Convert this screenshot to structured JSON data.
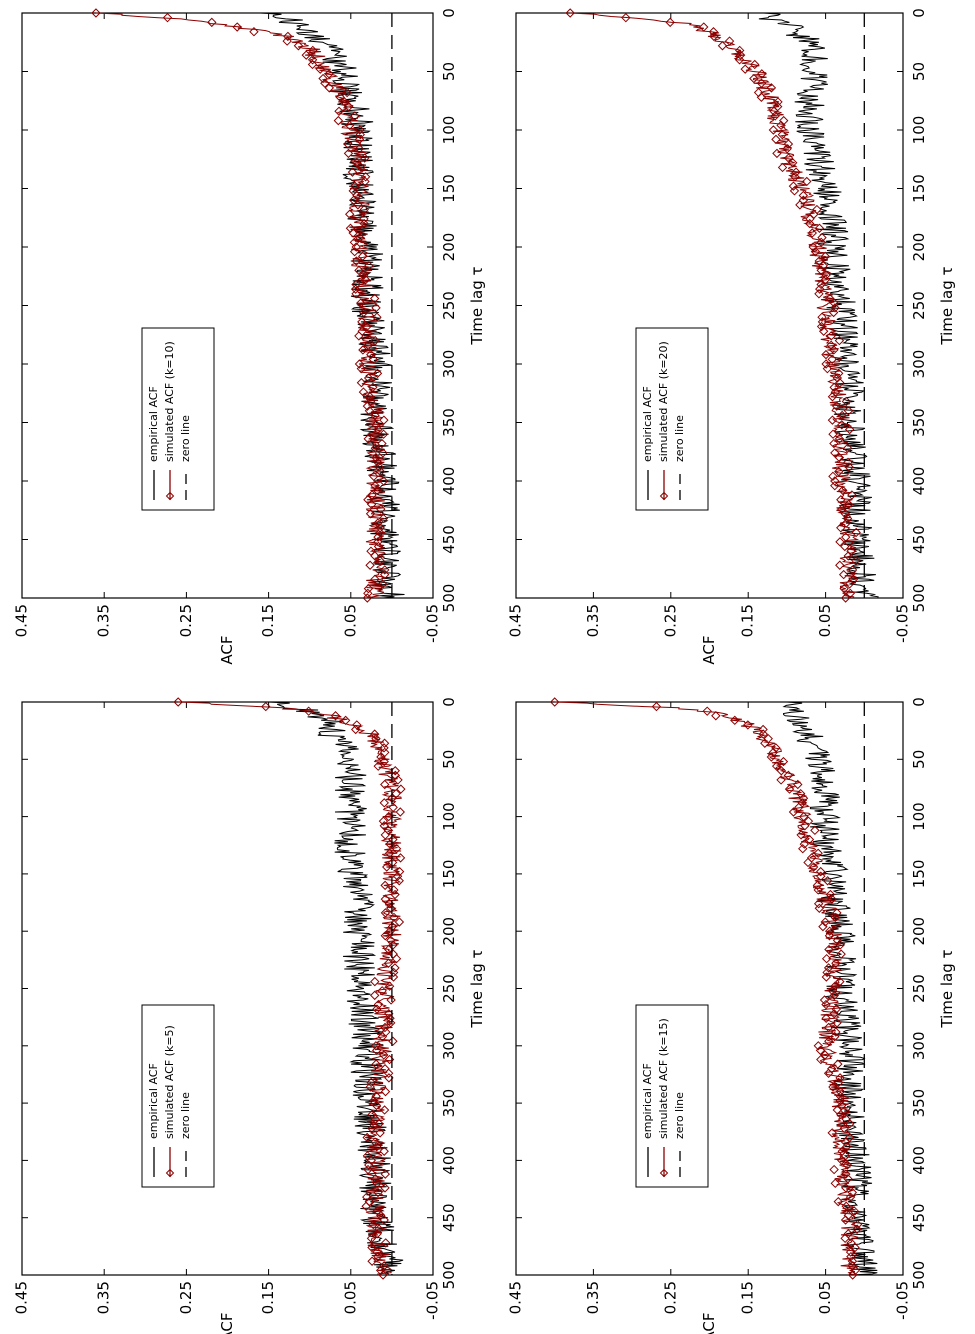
{
  "figure": {
    "orientation": "rotated 90 degrees clockwise (landscape page shown in portrait)"
  },
  "chart_data": [
    {
      "type": "line",
      "id": "k5",
      "xlabel": "Time lag τ",
      "ylabel": "ACF",
      "xlim": [
        0,
        500
      ],
      "ylim": [
        -0.05,
        0.45
      ],
      "x_ticks": [
        "0",
        "50",
        "100",
        "150",
        "200",
        "250",
        "300",
        "350",
        "400",
        "450",
        "500"
      ],
      "y_ticks": [
        "-0.05",
        "0.05",
        "0.15",
        "0.25",
        "0.35",
        "0.45"
      ],
      "legend": {
        "placement": "top-right",
        "entries": [
          "empirical ACF",
          "simulated ACF (k=5)",
          "zero line"
        ]
      },
      "series": [
        {
          "name": "empirical ACF",
          "color": "#000000",
          "x": [
            0,
            5,
            10,
            20,
            30,
            50,
            75,
            100,
            125,
            150,
            175,
            200,
            250,
            300,
            350,
            400,
            450,
            500
          ],
          "y": [
            0.15,
            0.12,
            0.09,
            0.07,
            0.07,
            0.05,
            0.05,
            0.05,
            0.05,
            0.05,
            0.04,
            0.04,
            0.04,
            0.03,
            0.03,
            0.02,
            0.02,
            0.0
          ]
        },
        {
          "name": "simulated ACF (k=5)",
          "color": "#8b0000",
          "marker": "diamond",
          "x": [
            0,
            5,
            10,
            20,
            30,
            50,
            75,
            100,
            125,
            150,
            175,
            200,
            250,
            300,
            350,
            400,
            450,
            500
          ],
          "y": [
            0.26,
            0.13,
            0.08,
            0.05,
            0.02,
            0.01,
            0.0,
            0.0,
            0.0,
            0.0,
            0.0,
            0.0,
            0.01,
            0.01,
            0.02,
            0.02,
            0.02,
            0.01
          ]
        },
        {
          "name": "zero line",
          "color": "#000000",
          "dash": true,
          "x": [
            0,
            500
          ],
          "y": [
            0,
            0
          ]
        }
      ]
    },
    {
      "type": "line",
      "id": "k10",
      "xlabel": "Time lag τ",
      "ylabel": "ACF",
      "xlim": [
        0,
        500
      ],
      "ylim": [
        -0.05,
        0.45
      ],
      "x_ticks": [
        "0",
        "50",
        "100",
        "150",
        "200",
        "250",
        "300",
        "350",
        "400",
        "450",
        "500"
      ],
      "y_ticks": [
        "-0.05",
        "0.05",
        "0.15",
        "0.25",
        "0.35",
        "0.45"
      ],
      "legend": {
        "placement": "top-right",
        "entries": [
          "empirical ACF",
          "simulated ACF (k=10)",
          "zero line"
        ]
      },
      "series": [
        {
          "name": "empirical ACF",
          "color": "#000000",
          "x": [
            0,
            5,
            10,
            20,
            30,
            50,
            75,
            100,
            125,
            150,
            175,
            200,
            250,
            300,
            350,
            400,
            450,
            500
          ],
          "y": [
            0.16,
            0.13,
            0.11,
            0.09,
            0.08,
            0.06,
            0.05,
            0.04,
            0.04,
            0.04,
            0.04,
            0.03,
            0.03,
            0.02,
            0.02,
            0.01,
            0.01,
            0.0
          ]
        },
        {
          "name": "simulated ACF (k=10)",
          "color": "#8b0000",
          "marker": "diamond",
          "x": [
            0,
            5,
            10,
            20,
            30,
            50,
            75,
            100,
            125,
            150,
            175,
            200,
            250,
            300,
            350,
            400,
            450,
            500
          ],
          "y": [
            0.36,
            0.26,
            0.2,
            0.13,
            0.1,
            0.08,
            0.06,
            0.05,
            0.04,
            0.04,
            0.04,
            0.04,
            0.03,
            0.03,
            0.02,
            0.02,
            0.02,
            0.02
          ]
        },
        {
          "name": "zero line",
          "color": "#000000",
          "dash": true,
          "x": [
            0,
            500
          ],
          "y": [
            0,
            0
          ]
        }
      ]
    },
    {
      "type": "line",
      "id": "k15",
      "xlabel": "Time lag τ",
      "ylabel": "ACF",
      "xlim": [
        0,
        500
      ],
      "ylim": [
        -0.05,
        0.45
      ],
      "x_ticks": [
        "0",
        "50",
        "100",
        "150",
        "200",
        "250",
        "300",
        "350",
        "400",
        "450",
        "500"
      ],
      "y_ticks": [
        "-0.05",
        "0.05",
        "0.15",
        "0.25",
        "0.35",
        "0.45"
      ],
      "legend": {
        "placement": "top-right",
        "entries": [
          "empirical ACF",
          "simulated ACF (k=15)",
          "zero line"
        ]
      },
      "series": [
        {
          "name": "empirical ACF",
          "color": "#000000",
          "x": [
            0,
            5,
            10,
            20,
            30,
            50,
            75,
            100,
            125,
            150,
            175,
            200,
            250,
            300,
            350,
            400,
            450,
            500
          ],
          "y": [
            0.1,
            0.1,
            0.09,
            0.08,
            0.07,
            0.06,
            0.05,
            0.05,
            0.05,
            0.04,
            0.04,
            0.03,
            0.03,
            0.02,
            0.02,
            0.01,
            0.01,
            0.0
          ]
        },
        {
          "name": "simulated ACF (k=15)",
          "color": "#8b0000",
          "marker": "diamond",
          "x": [
            0,
            5,
            10,
            20,
            30,
            50,
            75,
            100,
            125,
            150,
            175,
            200,
            250,
            300,
            350,
            400,
            450,
            500
          ],
          "y": [
            0.4,
            0.25,
            0.19,
            0.15,
            0.13,
            0.11,
            0.09,
            0.08,
            0.07,
            0.06,
            0.05,
            0.04,
            0.04,
            0.05,
            0.03,
            0.03,
            0.02,
            0.02
          ]
        },
        {
          "name": "zero line",
          "color": "#000000",
          "dash": true,
          "x": [
            0,
            500
          ],
          "y": [
            0,
            0
          ]
        }
      ]
    },
    {
      "type": "line",
      "id": "k20",
      "xlabel": "Time lag τ",
      "ylabel": "ACF",
      "xlim": [
        0,
        500
      ],
      "ylim": [
        -0.05,
        0.45
      ],
      "x_ticks": [
        "0",
        "50",
        "100",
        "150",
        "200",
        "250",
        "300",
        "350",
        "400",
        "450",
        "500"
      ],
      "y_ticks": [
        "-0.05",
        "0.05",
        "0.15",
        "0.25",
        "0.35",
        "0.45"
      ],
      "legend": {
        "placement": "top-right",
        "entries": [
          "empirical ACF",
          "simulated ACF (k=20)",
          "zero line"
        ]
      },
      "series": [
        {
          "name": "empirical ACF",
          "color": "#000000",
          "x": [
            0,
            5,
            10,
            20,
            30,
            50,
            75,
            100,
            125,
            150,
            175,
            200,
            250,
            300,
            350,
            400,
            450,
            500
          ],
          "y": [
            0.13,
            0.12,
            0.1,
            0.08,
            0.07,
            0.06,
            0.07,
            0.07,
            0.06,
            0.05,
            0.04,
            0.04,
            0.03,
            0.02,
            0.02,
            0.01,
            0.01,
            0.0
          ]
        },
        {
          "name": "simulated ACF (k=20)",
          "color": "#8b0000",
          "marker": "diamond",
          "x": [
            0,
            5,
            10,
            20,
            30,
            50,
            75,
            100,
            125,
            150,
            175,
            200,
            250,
            300,
            350,
            400,
            450,
            500
          ],
          "y": [
            0.38,
            0.28,
            0.22,
            0.19,
            0.17,
            0.14,
            0.12,
            0.11,
            0.1,
            0.08,
            0.07,
            0.06,
            0.05,
            0.04,
            0.03,
            0.03,
            0.02,
            0.02
          ]
        },
        {
          "name": "zero line",
          "color": "#000000",
          "dash": true,
          "x": [
            0,
            500
          ],
          "y": [
            0,
            0
          ]
        }
      ]
    }
  ]
}
